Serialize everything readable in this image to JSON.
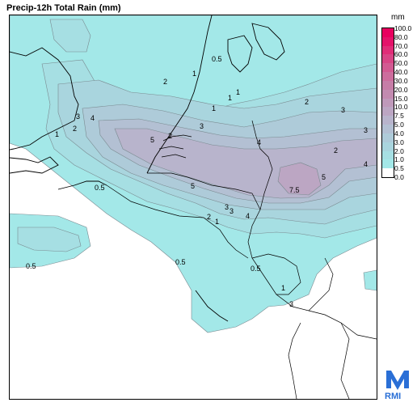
{
  "title": "Precip-12h Total Rain (mm)",
  "legend": {
    "unit": "mm",
    "levels": [
      "100.0",
      "80.0",
      "70.0",
      "60.0",
      "50.0",
      "40.0",
      "30.0",
      "20.0",
      "15.0",
      "10.0",
      "7.5",
      "5.0",
      "4.0",
      "3.0",
      "2.0",
      "1.0",
      "0.5",
      "0.0"
    ],
    "colors": [
      "#e8005f",
      "#e4136a",
      "#e02d78",
      "#d84586",
      "#d25a92",
      "#cc6d9d",
      "#c67da7",
      "#c28bb0",
      "#bf99ba",
      "#bca6c3",
      "#b8b4cc",
      "#b3c0d3",
      "#aecbd9",
      "#a9d5de",
      "#a6dfe3",
      "#a3e8e8",
      "#ffffff"
    ]
  },
  "contour_labels": [
    "0.5",
    "2",
    "1",
    "2",
    "3",
    "1",
    "3",
    "4",
    "5",
    "3",
    "4",
    "5",
    "7.5",
    "2",
    "3",
    "1",
    "2",
    "3",
    "4",
    "5",
    "0.5",
    "1",
    "0.5",
    "0.5",
    "1",
    "0.5",
    "1",
    "2",
    "3",
    "4",
    "1",
    "2",
    "3"
  ],
  "logo": {
    "text": "RMI",
    "color": "#2a6fd6"
  }
}
